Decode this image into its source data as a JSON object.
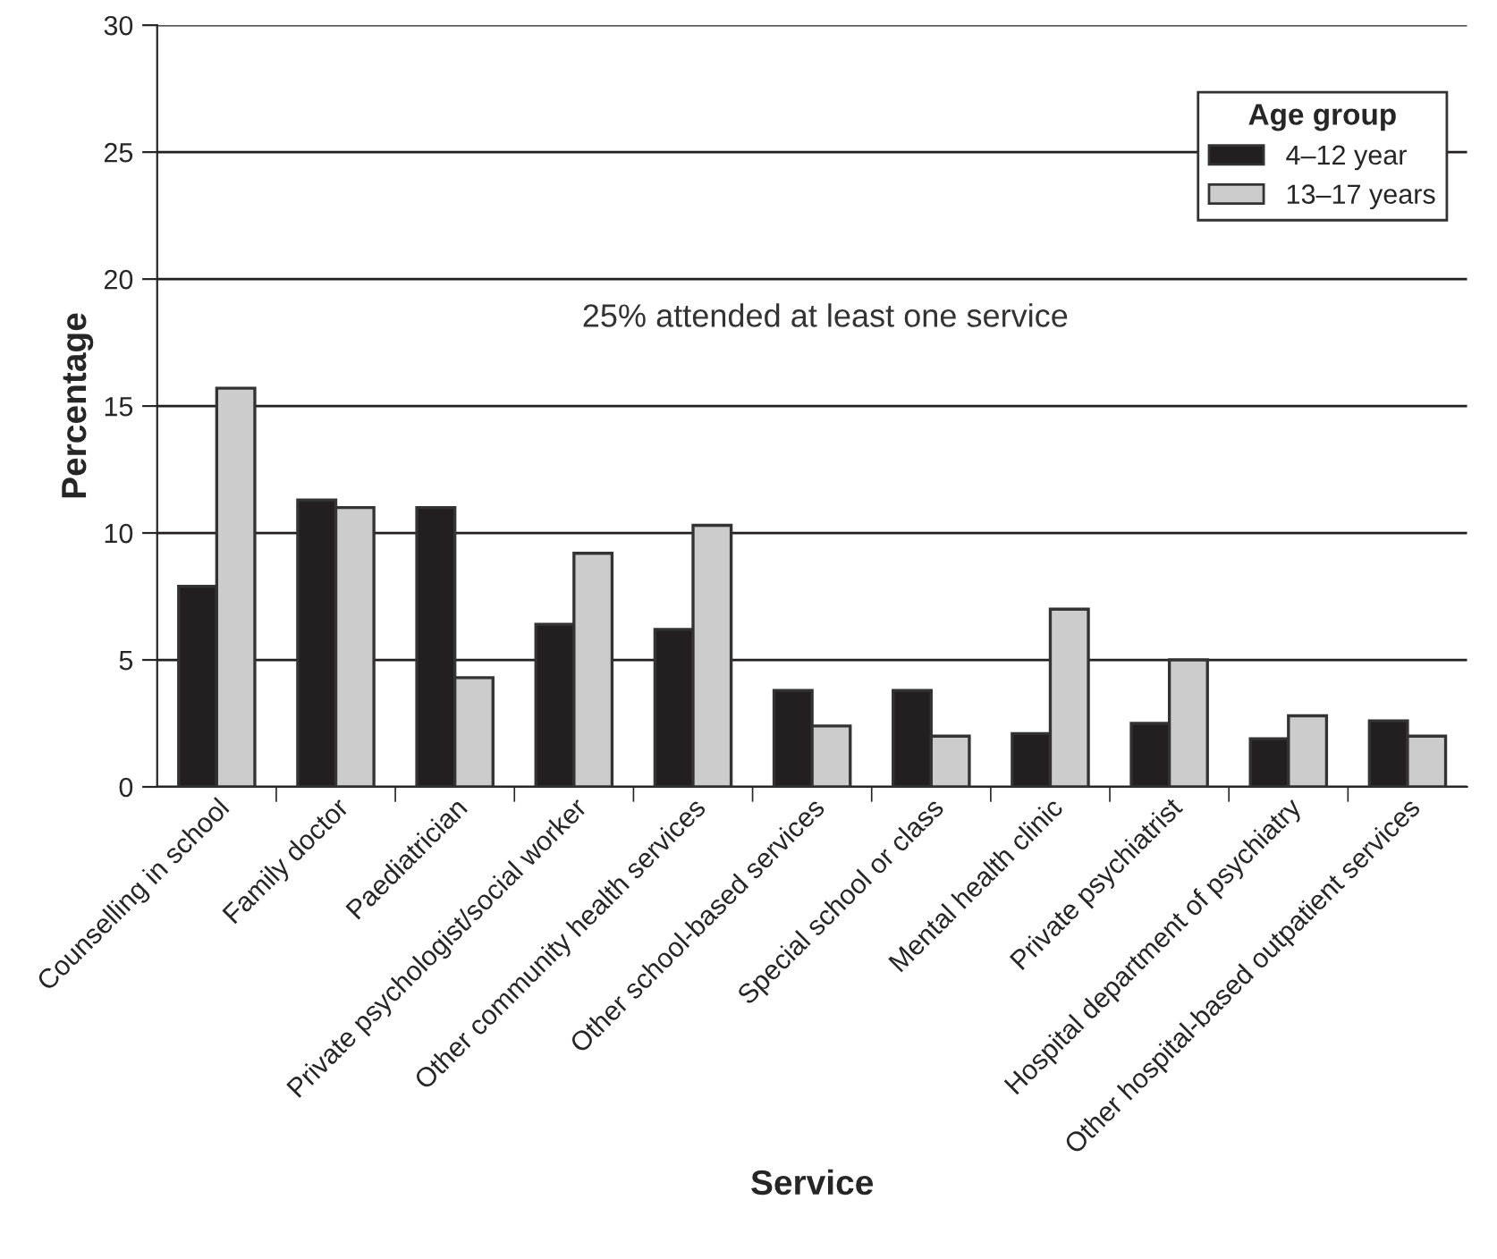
{
  "chart_data": {
    "type": "bar",
    "xlabel": "Service",
    "ylabel": "Percentage",
    "legend_title": "Age group",
    "categories": [
      "Counselling in school",
      "Family doctor",
      "Paediatrician",
      "Private psychologist/social worker",
      "Other community health services",
      "Other school-based services",
      "Special school or class",
      "Mental health clinic",
      "Private psychiatrist",
      "Hospital department of psychiatry",
      "Other hospital-based outpatient services"
    ],
    "series": [
      {
        "name": "4–12 year",
        "color": "#231f20",
        "values": [
          7.9,
          11.3,
          11.0,
          6.4,
          6.2,
          3.8,
          3.8,
          2.1,
          2.5,
          1.9,
          2.6
        ]
      },
      {
        "name": "13–17 years",
        "color": "#cccccc",
        "values": [
          15.7,
          11.0,
          4.3,
          9.2,
          10.3,
          2.4,
          2.0,
          7.0,
          5.0,
          2.8,
          2.0
        ]
      }
    ],
    "ylim": [
      0,
      30
    ],
    "yticks": [
      0,
      5,
      10,
      15,
      20,
      25,
      30
    ],
    "grid": "y",
    "legend": "top right",
    "annotations": [
      "25% attended at least one service"
    ]
  }
}
